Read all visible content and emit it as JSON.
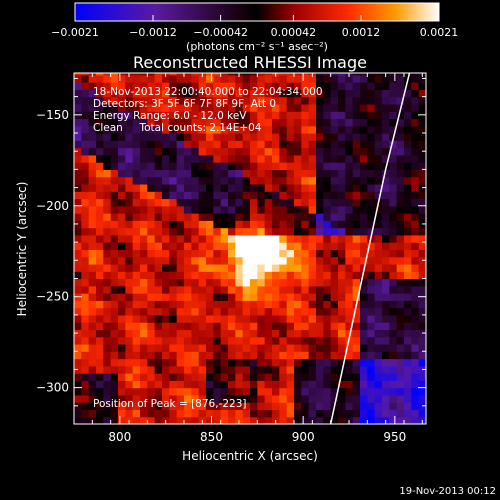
{
  "chart_data": {
    "type": "heatmap",
    "title": "Reconstructed RHESSI Image",
    "xlabel": "Heliocentric X (arcsec)",
    "ylabel": "Heliocentric Y (arcsec)",
    "xlim": [
      775,
      967
    ],
    "ylim": [
      -320,
      -127
    ],
    "x_ticks": [
      800,
      850,
      900,
      950
    ],
    "y_ticks": [
      -150,
      -200,
      -250,
      -300
    ],
    "x_tick_labels": [
      "800",
      "850",
      "900",
      "950"
    ],
    "y_tick_labels": [
      "−150",
      "−200",
      "−250",
      "−300"
    ],
    "colorbar": {
      "range": [
        -0.0021,
        0.0021
      ],
      "tick_values": [
        -0.0021,
        -0.0012,
        -0.00042,
        0.00042,
        0.0012,
        0.0021
      ],
      "tick_labels": [
        "−0.0021",
        "−0.0012",
        "−0.00042",
        "0.00042",
        "0.0012",
        "0.0021"
      ],
      "unit_label": "(photons cm⁻² s⁻¹ asec⁻²)"
    },
    "annotations": [
      "18-Nov-2013 22:00:40.000 to 22:04:34.000",
      "Detectors: 3F 5F 6F 7F 8F 9F, Att 0",
      "Energy Range: 6.0 - 12.0 keV",
      "Clean     Total counts: 2.14E+04"
    ],
    "peak_label": "Position of Peak = [876,-223]",
    "peak": [
      876,
      -223
    ],
    "limb_curve": [
      [
        958,
        -127
      ],
      [
        945,
        -180
      ],
      [
        930,
        -250
      ],
      [
        915,
        -320
      ]
    ],
    "colors": {
      "background": "#000000",
      "text": "#ffffff",
      "limb": "#ffffff"
    }
  },
  "footer": {
    "timestamp": "19-Nov-2013 00:12"
  }
}
